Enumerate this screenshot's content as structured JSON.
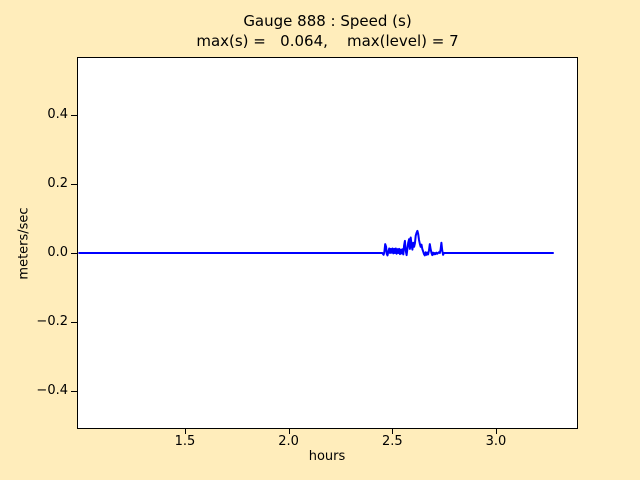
{
  "chart_data": {
    "type": "line",
    "title": "Gauge 888 : Speed (s)",
    "subtitle": "max(s) =   0.064,    max(level) = 7",
    "xlabel": "hours",
    "ylabel": "meters/sec",
    "max_s": 0.064,
    "max_level": 7,
    "xlim": [
      0.984,
      3.391
    ],
    "ylim": [
      -0.504,
      0.565
    ],
    "xticks": [
      1.5,
      2.0,
      2.5,
      3.0
    ],
    "xtick_labels": [
      "1.5",
      "2.0",
      "2.5",
      "3.0"
    ],
    "yticks": [
      0.4,
      0.2,
      0.0,
      -0.2,
      -0.4
    ],
    "ytick_labels": [
      "0.4",
      "0.2",
      "0.0",
      "−0.2",
      "−0.4"
    ],
    "grid": false,
    "legend_position": "none",
    "colors": {
      "line": "#0000ff",
      "figure_background": "#ffedbb",
      "plot_background": "#ffffff",
      "axis": "#000000"
    },
    "series": [
      {
        "name": "speed",
        "points": [
          [
            0.99,
            0.0
          ],
          [
            2.452,
            0.0
          ],
          [
            2.458,
            -0.005
          ],
          [
            2.462,
            0.004
          ],
          [
            2.466,
            0.026
          ],
          [
            2.47,
            0.018
          ],
          [
            2.473,
            -0.002
          ],
          [
            2.477,
            -0.007
          ],
          [
            2.481,
            0.004
          ],
          [
            2.485,
            0.013
          ],
          [
            2.489,
            0.0
          ],
          [
            2.493,
            0.012
          ],
          [
            2.497,
            0.001
          ],
          [
            2.501,
            0.013
          ],
          [
            2.505,
            -0.001
          ],
          [
            2.509,
            0.012
          ],
          [
            2.513,
            0.0
          ],
          [
            2.517,
            0.013
          ],
          [
            2.521,
            -0.002
          ],
          [
            2.525,
            0.011
          ],
          [
            2.529,
            0.0
          ],
          [
            2.533,
            0.012
          ],
          [
            2.537,
            -0.003
          ],
          [
            2.541,
            0.01
          ],
          [
            2.545,
            -0.001
          ],
          [
            2.549,
            0.011
          ],
          [
            2.553,
            -0.004
          ],
          [
            2.557,
            0.022
          ],
          [
            2.561,
            0.035
          ],
          [
            2.565,
            0.006
          ],
          [
            2.569,
            -0.006
          ],
          [
            2.573,
            0.012
          ],
          [
            2.577,
            0.03
          ],
          [
            2.581,
            0.04
          ],
          [
            2.585,
            0.012
          ],
          [
            2.589,
            0.045
          ],
          [
            2.593,
            0.022
          ],
          [
            2.597,
            0.01
          ],
          [
            2.601,
            0.03
          ],
          [
            2.605,
            0.018
          ],
          [
            2.609,
            0.028
          ],
          [
            2.613,
            0.05
          ],
          [
            2.617,
            0.058
          ],
          [
            2.621,
            0.064
          ],
          [
            2.625,
            0.055
          ],
          [
            2.629,
            0.038
          ],
          [
            2.633,
            0.026
          ],
          [
            2.637,
            0.018
          ],
          [
            2.641,
            0.024
          ],
          [
            2.645,
            0.012
          ],
          [
            2.649,
            0.004
          ],
          [
            2.653,
            -0.003
          ],
          [
            2.657,
            -0.007
          ],
          [
            2.661,
            0.002
          ],
          [
            2.665,
            -0.005
          ],
          [
            2.669,
            0.001
          ],
          [
            2.673,
            -0.004
          ],
          [
            2.677,
            0.008
          ],
          [
            2.681,
            0.026
          ],
          [
            2.685,
            0.012
          ],
          [
            2.689,
            0.0
          ],
          [
            2.693,
            -0.006
          ],
          [
            2.697,
            0.001
          ],
          [
            2.701,
            -0.004
          ],
          [
            2.705,
            0.0
          ],
          [
            2.709,
            -0.003
          ],
          [
            2.713,
            0.001
          ],
          [
            2.717,
            -0.002
          ],
          [
            2.721,
            0.0
          ],
          [
            2.725,
            0.002
          ],
          [
            2.729,
            0.0
          ],
          [
            2.733,
            0.01
          ],
          [
            2.737,
            0.03
          ],
          [
            2.741,
            0.008
          ],
          [
            2.745,
            -0.005
          ],
          [
            2.749,
            0.0
          ],
          [
            2.755,
            0.0
          ],
          [
            3.275,
            0.0
          ]
        ]
      }
    ]
  }
}
